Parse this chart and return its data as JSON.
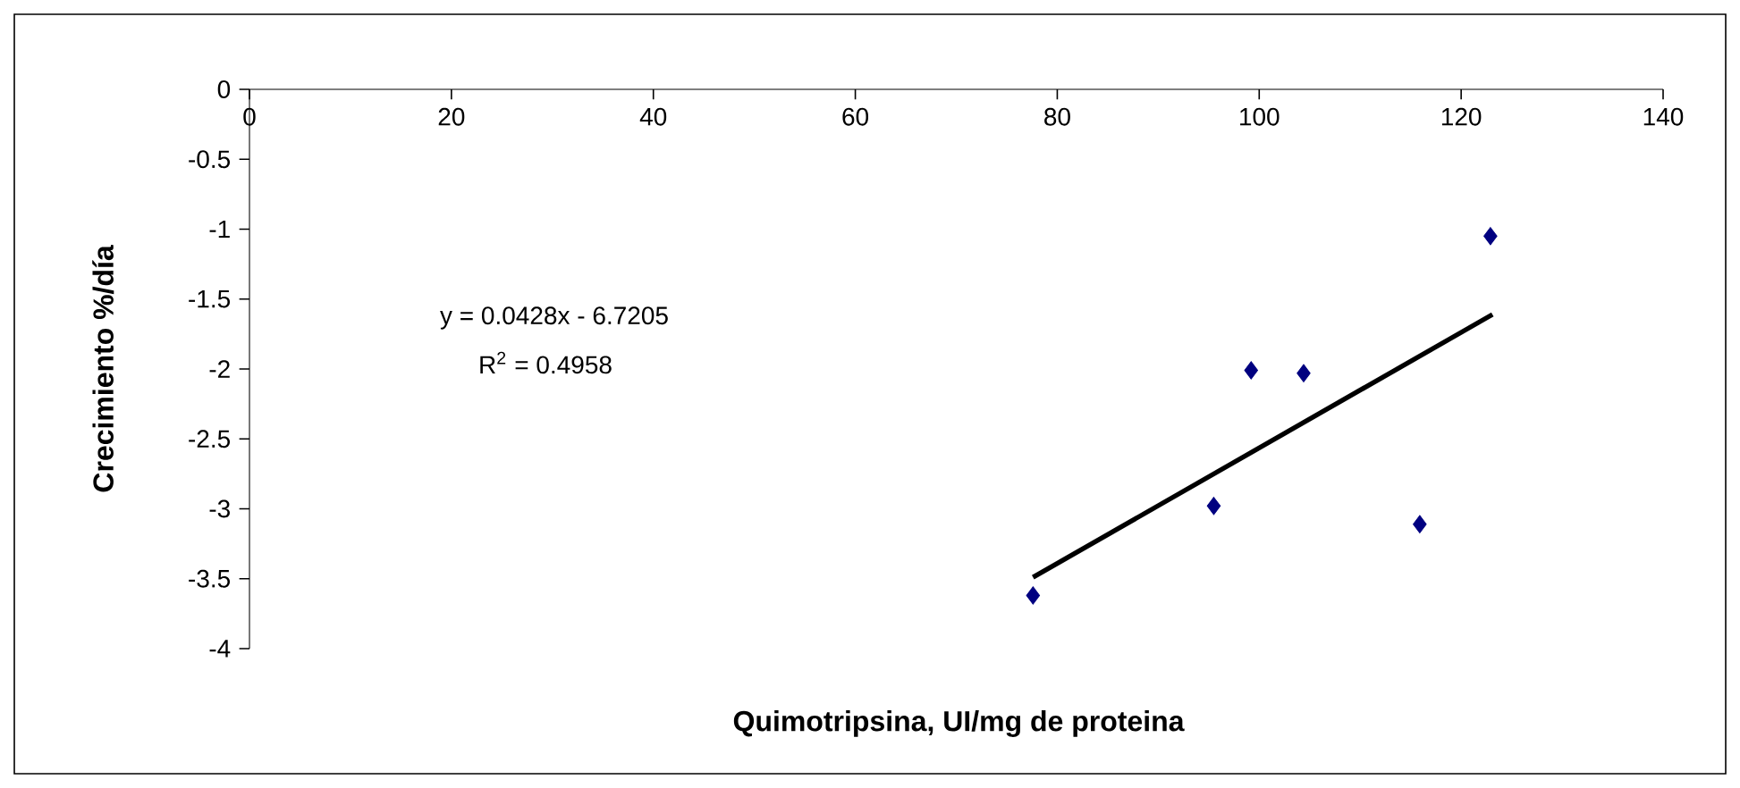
{
  "chart_data": {
    "type": "scatter",
    "xlabel": "Quimotripsina, UI/mg de proteina",
    "ylabel": "Crecimiento %/día",
    "xlim": [
      0,
      140
    ],
    "xticks": [
      0,
      20,
      40,
      60,
      80,
      100,
      120,
      140
    ],
    "ylim": [
      -4,
      0
    ],
    "yticks": [
      -4,
      -3.5,
      -3,
      -2.5,
      -2,
      -1.5,
      -1,
      -0.5,
      0
    ],
    "grid": false,
    "series": [
      {
        "color": "#000080",
        "marker": "diamond",
        "x": [
          77.6,
          95.5,
          99.2,
          104.4,
          115.9,
          122.9
        ],
        "values": [
          -3.62,
          -2.98,
          -2.01,
          -2.03,
          -3.11,
          -1.05
        ]
      },
      {
        "type": "line",
        "color": "#000000",
        "marker": "none",
        "line_style": "solid",
        "x": [
          77.6,
          123.1
        ],
        "values": [
          -3.49,
          -1.61
        ]
      }
    ],
    "annotations": [
      "y = 0.0428x - 6.7205",
      "R$^{2}$ = 0.4958"
    ]
  }
}
